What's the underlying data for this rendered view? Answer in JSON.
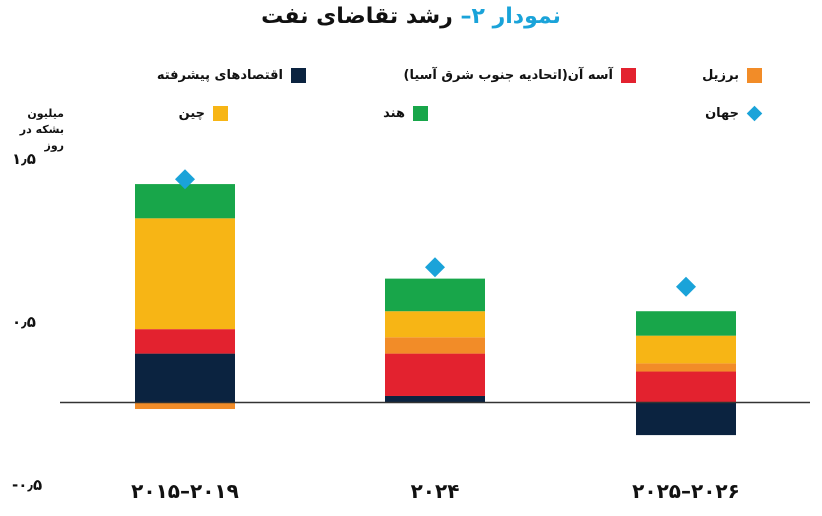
{
  "chart_data": {
    "type": "bar",
    "stacked": true,
    "title_prefix": "نمودار ۲–",
    "title_main": "رشد تقاضای نفت",
    "ylabel": "میلیون بشکه در روز",
    "ylim": [
      -0.5,
      1.5
    ],
    "yticks": [
      {
        "value": 1.5,
        "label": "۱٫۵"
      },
      {
        "value": 0.5,
        "label": "۰٫۵"
      },
      {
        "value": -0.5,
        "label": "-۰٫۵"
      }
    ],
    "categories": [
      "۲۰۱۵–۲۰۱۹",
      "۲۰۲۴",
      "۲۰۲۵–۲۰۲۶"
    ],
    "series": [
      {
        "name": "اقتصادهای پیشرفته",
        "color": "#0b2340",
        "values": [
          0.3,
          0.04,
          -0.2
        ]
      },
      {
        "name": "آسه آن(اتحادیه جنوب شرق آسیا)",
        "color": "#e3222f",
        "values": [
          0.15,
          0.26,
          0.19
        ]
      },
      {
        "name": "برزیل",
        "color": "#f28c28",
        "values": [
          -0.04,
          0.1,
          0.05
        ]
      },
      {
        "name": "چین",
        "color": "#f7b515",
        "values": [
          0.68,
          0.16,
          0.17
        ]
      },
      {
        "name": "هند",
        "color": "#18a64a",
        "values": [
          0.21,
          0.2,
          0.15
        ]
      }
    ],
    "world": {
      "name": "جهان",
      "color": "#1aa3d9",
      "values": [
        1.37,
        0.83,
        0.71
      ]
    }
  },
  "legend": {
    "items": [
      {
        "label": "اقتصادهای پیشرفته",
        "color": "#0b2340"
      },
      {
        "label": "آسه آن(اتحادیه جنوب شرق آسیا)",
        "color": "#e3222f"
      },
      {
        "label": "برزیل",
        "color": "#f28c28"
      },
      {
        "label": "چین",
        "color": "#f7b515"
      },
      {
        "label": "هند",
        "color": "#18a64a"
      },
      {
        "label": "جهان",
        "color": "#1aa3d9",
        "icon": "diamond-icon"
      }
    ]
  }
}
